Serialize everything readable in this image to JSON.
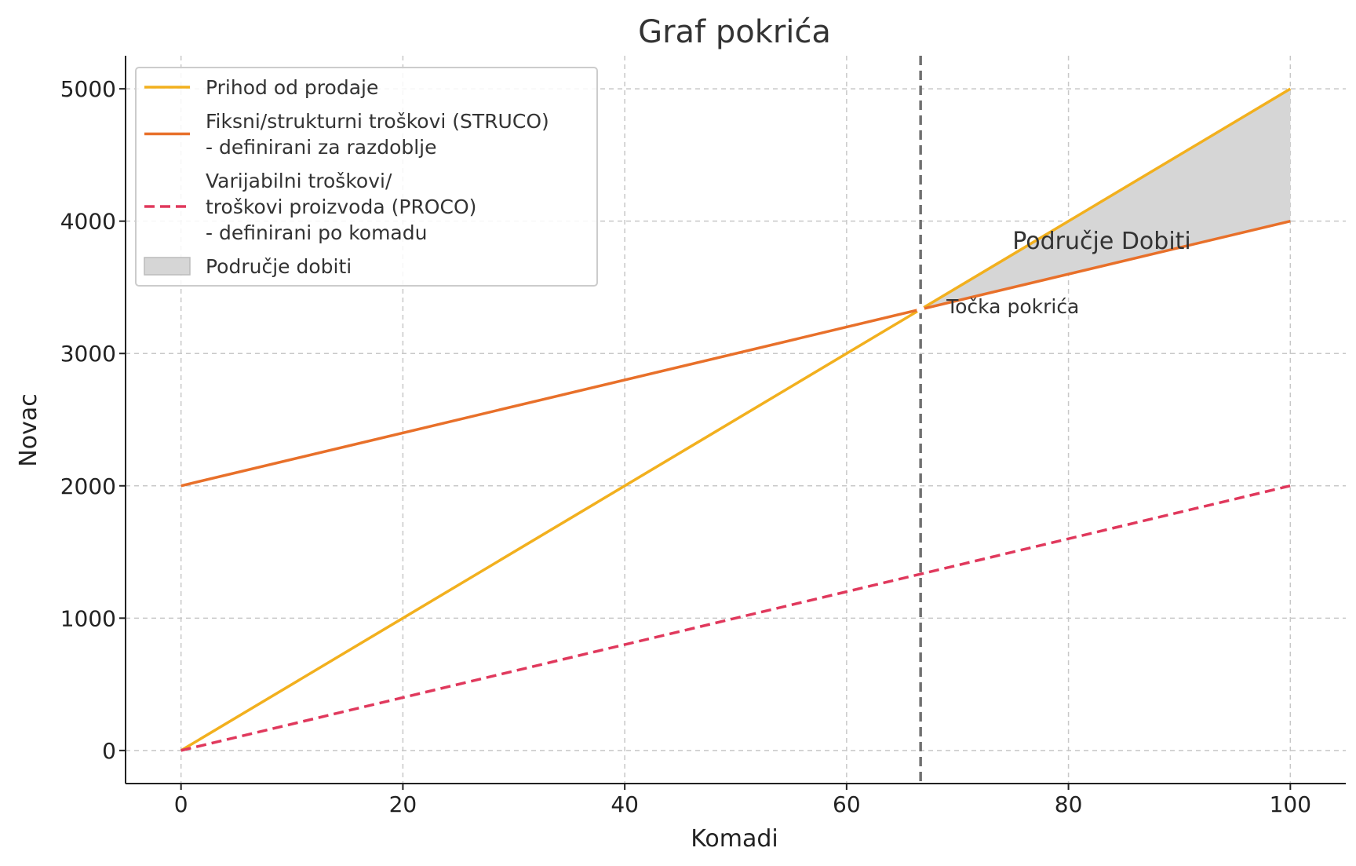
{
  "chart_data": {
    "type": "line",
    "title": "Graf pokrića",
    "xlabel": "Komadi",
    "ylabel": "Novac",
    "xlim": [
      -5,
      105
    ],
    "ylim": [
      -250,
      5250
    ],
    "xticks": [
      0,
      20,
      40,
      60,
      80,
      100
    ],
    "yticks": [
      0,
      1000,
      2000,
      3000,
      4000,
      5000
    ],
    "grid": true,
    "legend_position": "top-left",
    "series": [
      {
        "name": "Prihod od prodaje",
        "color": "#f2b01e",
        "style": "solid",
        "x": [
          0,
          100
        ],
        "y": [
          0,
          5000
        ]
      },
      {
        "name": "Fiksni/strukturni troškovi (STRUCO)\n- definirani za razdoblje",
        "color": "#e8702a",
        "style": "solid",
        "x": [
          0,
          100
        ],
        "y": [
          2000,
          4000
        ]
      },
      {
        "name": "Varijabilni troškovi/\ntroškovi proizvoda (PROCO)\n- definirani po komadu",
        "color": "#e0385c",
        "style": "dashed",
        "x": [
          0,
          100
        ],
        "y": [
          0,
          2000
        ]
      }
    ],
    "fill_area": {
      "name": "Područje dobiti",
      "color": "#d6d6d6",
      "x": [
        66.67,
        100
      ],
      "upper": [
        3333,
        5000
      ],
      "lower": [
        3333,
        4000
      ]
    },
    "breakeven": {
      "x": 66.67,
      "y": 3333,
      "color": "#707070"
    },
    "annotations": [
      {
        "text": "Područje Dobiti",
        "x": 83,
        "y": 3850
      },
      {
        "text": "Točka pokrića",
        "x": 69,
        "y": 3350
      }
    ]
  }
}
